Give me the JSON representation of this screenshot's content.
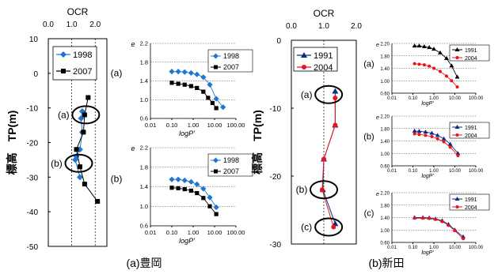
{
  "figure": {
    "caption_left": "(a)豊岡",
    "caption_right": "(b)新田"
  },
  "chart_data": [
    {
      "id": "toyooka-ocr",
      "type": "scatter",
      "xlabel": "OCR",
      "ylabel": "標高　TP(m)",
      "xlim": [
        0.0,
        2.5
      ],
      "ylim": [
        -50,
        10
      ],
      "xticks": [
        "0.0",
        "1.0",
        "2.0"
      ],
      "yticks": [
        "10",
        "0",
        "-10",
        "-20",
        "-30",
        "-40",
        "-50"
      ],
      "reference_lines_x": [
        1.0,
        2.0
      ],
      "annotations": [
        {
          "label": "(a)",
          "x": 1.6,
          "y": -12
        },
        {
          "label": "(b)",
          "x": 1.3,
          "y": -26
        }
      ],
      "series": [
        {
          "name": "1998",
          "color": "#1f77d0",
          "marker": "diamond",
          "points": [
            [
              1.35,
              -30
            ],
            [
              1.15,
              -25
            ],
            [
              1.2,
              -24
            ],
            [
              1.35,
              -22
            ],
            [
              1.45,
              -17
            ],
            [
              1.4,
              -13
            ],
            [
              1.45,
              -11
            ]
          ]
        },
        {
          "name": "2007",
          "color": "#000000",
          "marker": "square",
          "points": [
            [
              2.1,
              -37
            ],
            [
              1.55,
              -32
            ],
            [
              1.35,
              -27
            ],
            [
              1.2,
              -22
            ],
            [
              1.5,
              -17
            ],
            [
              1.55,
              -12
            ],
            [
              1.7,
              -7
            ]
          ]
        }
      ]
    },
    {
      "id": "toyooka-e-logp-a",
      "panel_label": "(a)",
      "type": "line",
      "xscale": "log",
      "xlabel": "logP'",
      "ylabel": "e",
      "xlim": [
        0.01,
        100
      ],
      "ylim": [
        0.6,
        2.2
      ],
      "xticks": [
        "0.01",
        "0.10",
        "1.00",
        "10.00",
        "100.00"
      ],
      "yticks": [
        "0.6",
        "1.0",
        "1.4",
        "1.8",
        "2.2"
      ],
      "series": [
        {
          "name": "1998",
          "color": "#1f77d0",
          "marker": "diamond",
          "points": [
            [
              0.1,
              1.6
            ],
            [
              0.2,
              1.6
            ],
            [
              0.4,
              1.59
            ],
            [
              0.8,
              1.57
            ],
            [
              1.5,
              1.54
            ],
            [
              3,
              1.48
            ],
            [
              6,
              1.32
            ],
            [
              12,
              1.02
            ],
            [
              25,
              0.84
            ]
          ]
        },
        {
          "name": "2007",
          "color": "#000000",
          "marker": "square",
          "points": [
            [
              0.1,
              1.36
            ],
            [
              0.2,
              1.34
            ],
            [
              0.4,
              1.32
            ],
            [
              0.8,
              1.29
            ],
            [
              1.5,
              1.25
            ],
            [
              3,
              1.17
            ],
            [
              5,
              1.04
            ],
            [
              8,
              0.93
            ],
            [
              12,
              0.82
            ]
          ]
        }
      ]
    },
    {
      "id": "toyooka-e-logp-b",
      "panel_label": "(b)",
      "type": "line",
      "xscale": "log",
      "xlabel": "logP'",
      "ylabel": "e",
      "xlim": [
        0.01,
        100
      ],
      "ylim": [
        0.6,
        2.2
      ],
      "xticks": [
        "0.01",
        "0.10",
        "1.00",
        "10.00",
        "100.00"
      ],
      "yticks": [
        "0.6",
        "1.0",
        "1.4",
        "1.8",
        "2.2"
      ],
      "series": [
        {
          "name": "1998",
          "color": "#1f77d0",
          "marker": "diamond",
          "points": [
            [
              0.1,
              1.55
            ],
            [
              0.2,
              1.55
            ],
            [
              0.4,
              1.53
            ],
            [
              0.8,
              1.5
            ],
            [
              1.5,
              1.45
            ],
            [
              3,
              1.36
            ],
            [
              6,
              1.18
            ],
            [
              12,
              0.98
            ]
          ]
        },
        {
          "name": "2007",
          "color": "#000000",
          "marker": "square",
          "points": [
            [
              0.1,
              1.38
            ],
            [
              0.2,
              1.37
            ],
            [
              0.4,
              1.35
            ],
            [
              0.8,
              1.32
            ],
            [
              1.5,
              1.27
            ],
            [
              3,
              1.17
            ],
            [
              6,
              1.0
            ],
            [
              12,
              0.84
            ]
          ]
        }
      ]
    },
    {
      "id": "nitta-ocr",
      "type": "scatter",
      "xlabel": "OCR",
      "ylabel": "標高　TP(m)",
      "xlim": [
        0.0,
        2.0
      ],
      "ylim": [
        -30,
        0
      ],
      "xticks": [
        "0.0",
        "1.0",
        "2.0"
      ],
      "yticks": [
        "0",
        "-10",
        "-20",
        "-30"
      ],
      "reference_lines_x": [
        1.0
      ],
      "annotations": [
        {
          "label": "(a)",
          "x": 1.15,
          "y": -8
        },
        {
          "label": "(b)",
          "x": 1.0,
          "y": -22
        },
        {
          "label": "(c)",
          "x": 1.15,
          "y": -27.5
        }
      ],
      "series": [
        {
          "name": "1991",
          "color": "#102a80",
          "marker": "triangle",
          "points": [
            [
              1.35,
              -7.5
            ],
            [
              1.35,
              -12.5
            ],
            [
              1.0,
              -17.5
            ],
            [
              0.97,
              -22
            ],
            [
              1.35,
              -27
            ]
          ]
        },
        {
          "name": "2004",
          "color": "#e8141c",
          "marker": "circle",
          "points": [
            [
              1.35,
              -8.5
            ],
            [
              1.35,
              -12.5
            ],
            [
              1.0,
              -17.5
            ],
            [
              0.95,
              -22
            ],
            [
              1.3,
              -27.5
            ]
          ]
        }
      ]
    },
    {
      "id": "nitta-e-logp-a",
      "panel_label": "(a)",
      "type": "line",
      "xscale": "log",
      "xlabel": "logP'",
      "ylabel": "e",
      "xlim": [
        0.01,
        100
      ],
      "ylim": [
        0.6,
        2.2
      ],
      "xticks": [
        "0.01",
        "0.10",
        "1.00",
        "10.00",
        "100.00"
      ],
      "yticks": [
        "0.60",
        "1.00",
        "1.40",
        "1.80",
        "2.20"
      ],
      "series": [
        {
          "name": "1991",
          "color": "#000000",
          "marker": "triangle",
          "points": [
            [
              0.12,
              2.12
            ],
            [
              0.2,
              2.12
            ],
            [
              0.35,
              2.1
            ],
            [
              0.6,
              2.07
            ],
            [
              1,
              2.02
            ],
            [
              2,
              1.9
            ],
            [
              4,
              1.72
            ],
            [
              7,
              1.48
            ],
            [
              13,
              1.12
            ]
          ]
        },
        {
          "name": "2004",
          "color": "#e8141c",
          "marker": "circle",
          "points": [
            [
              0.12,
              1.55
            ],
            [
              0.2,
              1.53
            ],
            [
              0.35,
              1.51
            ],
            [
              0.6,
              1.47
            ],
            [
              1,
              1.4
            ],
            [
              2,
              1.3
            ],
            [
              4,
              1.15
            ],
            [
              7,
              1.0
            ],
            [
              13,
              0.8
            ]
          ]
        }
      ]
    },
    {
      "id": "nitta-e-logp-b",
      "panel_label": "(b)",
      "type": "line",
      "xscale": "log",
      "xlabel": "logP'",
      "ylabel": "e",
      "xlim": [
        0.01,
        100
      ],
      "ylim": [
        0.6,
        2.2
      ],
      "xticks": [
        "0.01",
        "0.10",
        "1.00",
        "10.00",
        "100.00"
      ],
      "yticks": [
        "0.60",
        "1.00",
        "1.40",
        "1.80",
        "2.20"
      ],
      "series": [
        {
          "name": "1991",
          "color": "#102a80",
          "marker": "triangle",
          "points": [
            [
              0.12,
              1.72
            ],
            [
              0.2,
              1.71
            ],
            [
              0.4,
              1.69
            ],
            [
              0.8,
              1.65
            ],
            [
              1.5,
              1.58
            ],
            [
              3,
              1.47
            ],
            [
              6,
              1.3
            ],
            [
              14,
              1.0
            ]
          ]
        },
        {
          "name": "2004",
          "color": "#e8141c",
          "marker": "circle",
          "points": [
            [
              0.12,
              1.63
            ],
            [
              0.2,
              1.61
            ],
            [
              0.4,
              1.58
            ],
            [
              0.8,
              1.54
            ],
            [
              1.5,
              1.47
            ],
            [
              3,
              1.37
            ],
            [
              6,
              1.2
            ],
            [
              14,
              0.93
            ]
          ]
        }
      ]
    },
    {
      "id": "nitta-e-logp-c",
      "panel_label": "(c)",
      "type": "line",
      "xscale": "log",
      "xlabel": "logP'",
      "ylabel": "e",
      "xlim": [
        0.01,
        100
      ],
      "ylim": [
        0.6,
        2.2
      ],
      "xticks": [
        "0.01",
        "0.10",
        "1.00",
        "10.00",
        "100.00"
      ],
      "yticks": [
        "0.60",
        "1.00",
        "1.40",
        "1.80",
        "2.20"
      ],
      "series": [
        {
          "name": "1991",
          "color": "#102a80",
          "marker": "triangle",
          "points": [
            [
              0.12,
              1.4
            ],
            [
              0.3,
              1.4
            ],
            [
              0.6,
              1.39
            ],
            [
              1.2,
              1.36
            ],
            [
              2.5,
              1.3
            ],
            [
              5,
              1.18
            ],
            [
              10,
              1.0
            ],
            [
              25,
              0.78
            ]
          ]
        },
        {
          "name": "2004",
          "color": "#e8141c",
          "marker": "circle",
          "points": [
            [
              0.12,
              1.38
            ],
            [
              0.3,
              1.38
            ],
            [
              0.6,
              1.37
            ],
            [
              1.2,
              1.34
            ],
            [
              2.5,
              1.27
            ],
            [
              5,
              1.15
            ],
            [
              10,
              0.98
            ],
            [
              25,
              0.72
            ]
          ]
        }
      ]
    }
  ]
}
